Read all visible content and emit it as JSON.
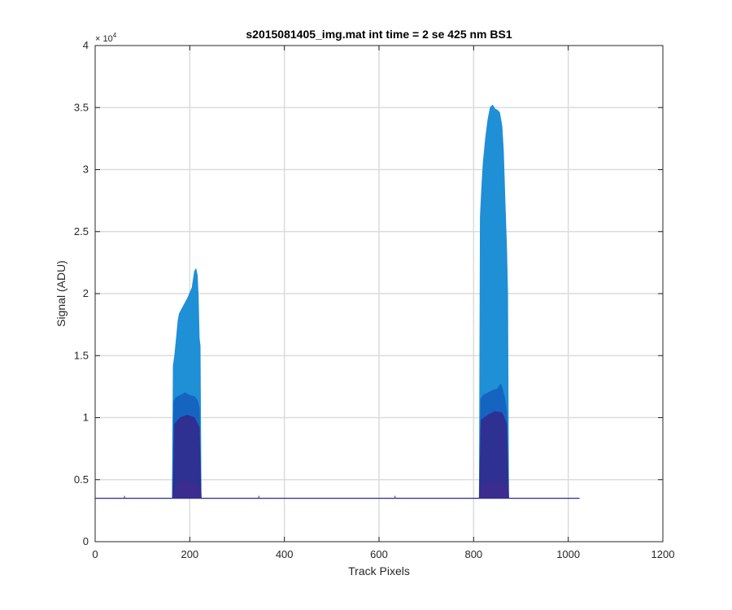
{
  "chart_data": {
    "type": "area",
    "title": "s2015081405_img.mat int time = 2 se  425 nm BS1",
    "xlabel": "Track Pixels",
    "ylabel": "Signal (ADU)",
    "xlim": [
      0,
      1200
    ],
    "ylim": [
      0,
      40000
    ],
    "y_exponent_label": "× 10",
    "y_exponent_power": "4",
    "xticks": [
      0,
      200,
      400,
      600,
      800,
      1000,
      1200
    ],
    "xtick_labels": [
      "0",
      "200",
      "400",
      "600",
      "800",
      "1000",
      "1200"
    ],
    "yticks": [
      0,
      5000,
      10000,
      15000,
      20000,
      25000,
      30000,
      35000,
      40000
    ],
    "ytick_labels": [
      "0",
      "0.5",
      "1",
      "1.5",
      "2",
      "2.5",
      "3",
      "3.5",
      "4"
    ],
    "grid": true,
    "baseline": 3500,
    "x_extent": [
      0,
      1024
    ],
    "series": [
      {
        "color": "#1f8fd6",
        "points": [
          [
            163,
            3500
          ],
          [
            165,
            14200
          ],
          [
            168,
            15000
          ],
          [
            172,
            16500
          ],
          [
            175,
            17800
          ],
          [
            178,
            18400
          ],
          [
            185,
            18900
          ],
          [
            195,
            19600
          ],
          [
            205,
            20500
          ],
          [
            210,
            21800
          ],
          [
            213,
            22000
          ],
          [
            216,
            21500
          ],
          [
            218,
            19800
          ],
          [
            220,
            16400
          ],
          [
            222,
            15800
          ],
          [
            224,
            3500
          ],
          [
            812,
            3500
          ],
          [
            814,
            26200
          ],
          [
            817,
            28500
          ],
          [
            820,
            30500
          ],
          [
            825,
            32500
          ],
          [
            830,
            34000
          ],
          [
            835,
            35000
          ],
          [
            840,
            35200
          ],
          [
            845,
            34900
          ],
          [
            850,
            34800
          ],
          [
            855,
            34600
          ],
          [
            860,
            33500
          ],
          [
            863,
            31500
          ],
          [
            866,
            28000
          ],
          [
            870,
            23500
          ],
          [
            872,
            20000
          ],
          [
            874,
            3500
          ]
        ]
      },
      {
        "color": "#1565c0",
        "points": [
          [
            164,
            3500
          ],
          [
            166,
            11300
          ],
          [
            170,
            11600
          ],
          [
            175,
            11700
          ],
          [
            180,
            11800
          ],
          [
            190,
            12000
          ],
          [
            200,
            11800
          ],
          [
            210,
            11700
          ],
          [
            216,
            11400
          ],
          [
            220,
            10800
          ],
          [
            224,
            3500
          ],
          [
            812,
            3500
          ],
          [
            815,
            11500
          ],
          [
            820,
            11800
          ],
          [
            830,
            12000
          ],
          [
            840,
            12200
          ],
          [
            850,
            12300
          ],
          [
            857,
            12700
          ],
          [
            862,
            12200
          ],
          [
            866,
            11500
          ],
          [
            870,
            10500
          ],
          [
            874,
            3500
          ]
        ]
      },
      {
        "color": "#2e3192",
        "points": [
          [
            164,
            3500
          ],
          [
            168,
            9500
          ],
          [
            180,
            10000
          ],
          [
            195,
            10200
          ],
          [
            210,
            10000
          ],
          [
            220,
            9200
          ],
          [
            224,
            3500
          ],
          [
            812,
            3500
          ],
          [
            816,
            9800
          ],
          [
            830,
            10200
          ],
          [
            845,
            10500
          ],
          [
            860,
            10400
          ],
          [
            870,
            9500
          ],
          [
            874,
            3500
          ]
        ]
      },
      {
        "color": "#3b2d8f",
        "points": [
          [
            164,
            3500
          ],
          [
            170,
            4500
          ],
          [
            190,
            4900
          ],
          [
            205,
            4800
          ],
          [
            222,
            4300
          ],
          [
            224,
            3500
          ],
          [
            812,
            3500
          ],
          [
            818,
            4500
          ],
          [
            840,
            4900
          ],
          [
            860,
            4800
          ],
          [
            872,
            4300
          ],
          [
            874,
            3500
          ]
        ]
      }
    ],
    "baseline_color": "#2a2d8c",
    "noise_spikes_x": [
      62,
      346,
      634
    ]
  }
}
